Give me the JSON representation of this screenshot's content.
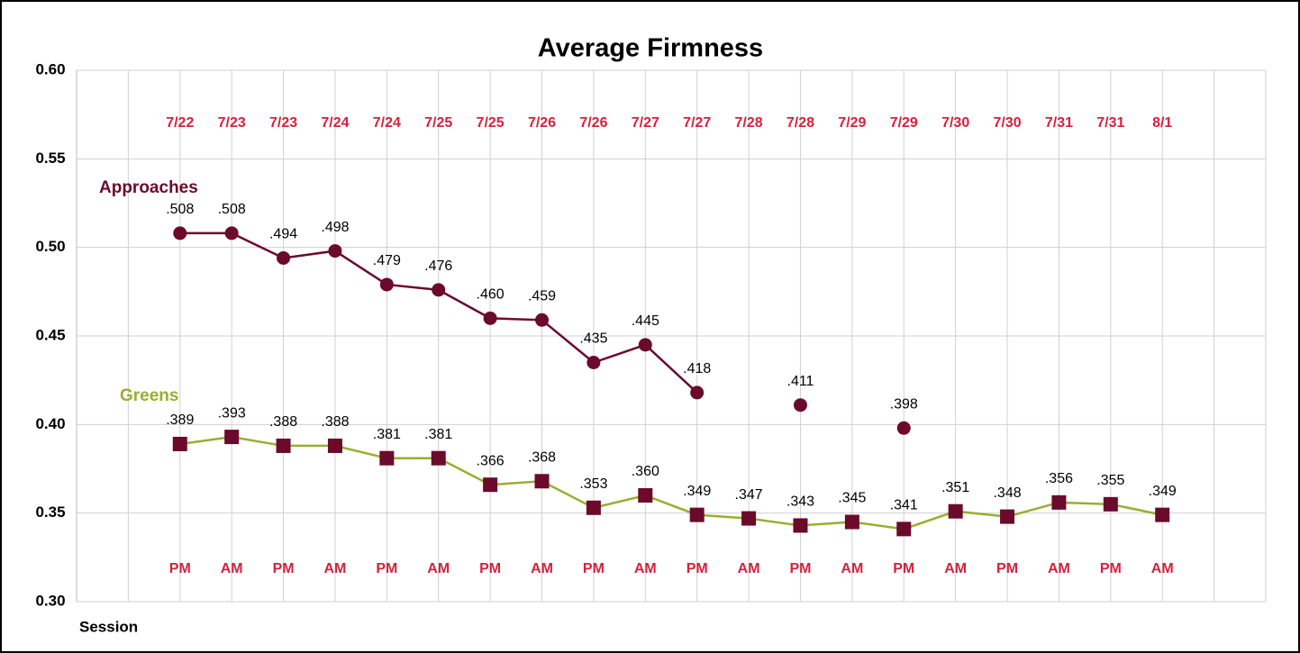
{
  "chart_data": {
    "type": "line",
    "title": "Average Firmness",
    "x_label": "Session",
    "categories": [
      null,
      null,
      "7/22",
      "7/23",
      "7/23",
      "7/24",
      "7/24",
      "7/25",
      "7/25",
      "7/26",
      "7/26",
      "7/27",
      "7/27",
      "7/28",
      "7/28",
      "7/29",
      "7/29",
      "7/30",
      "7/30",
      "7/31",
      "7/31",
      "8/1",
      null,
      null
    ],
    "sessions": [
      null,
      null,
      "PM",
      "AM",
      "PM",
      "AM",
      "PM",
      "AM",
      "PM",
      "AM",
      "PM",
      "AM",
      "PM",
      "AM",
      "PM",
      "AM",
      "PM",
      "AM",
      "PM",
      "AM",
      "PM",
      "AM",
      null,
      null
    ],
    "series": [
      {
        "name": "Approaches",
        "color": "#6b0a2a",
        "marker": "circle",
        "marker_color": "#6b0a2a",
        "values": [
          null,
          null,
          0.508,
          0.508,
          0.494,
          0.498,
          0.479,
          0.476,
          0.46,
          0.459,
          0.435,
          0.445,
          0.418,
          null,
          0.411,
          null,
          0.398,
          null,
          null,
          null,
          null,
          null,
          null,
          null
        ],
        "value_labels": [
          null,
          null,
          ".508",
          ".508",
          ".494",
          ".498",
          ".479",
          ".476",
          ".460",
          ".459",
          ".435",
          ".445",
          ".418",
          null,
          ".411",
          null,
          ".398",
          null,
          null,
          null,
          null,
          null,
          null,
          null
        ]
      },
      {
        "name": "Greens",
        "color": "#9aae2f",
        "marker": "square",
        "marker_color": "#6b0a2a",
        "values": [
          null,
          null,
          0.389,
          0.393,
          0.388,
          0.388,
          0.381,
          0.381,
          0.366,
          0.368,
          0.353,
          0.36,
          0.349,
          0.347,
          0.343,
          0.345,
          0.341,
          0.351,
          0.348,
          0.356,
          0.355,
          0.349,
          null,
          null
        ],
        "value_labels": [
          null,
          null,
          ".389",
          ".393",
          ".388",
          ".388",
          ".381",
          ".381",
          ".366",
          ".368",
          ".353",
          ".360",
          ".349",
          ".347",
          ".343",
          ".345",
          ".341",
          ".351",
          ".348",
          ".356",
          ".355",
          ".349",
          null,
          null
        ]
      }
    ],
    "ylim": [
      0.3,
      0.6
    ],
    "yticks": [
      {
        "value": 0.3,
        "label": "0.30"
      },
      {
        "value": 0.35,
        "label": "0.35"
      },
      {
        "value": 0.4,
        "label": "0.40"
      },
      {
        "value": 0.45,
        "label": "0.45"
      },
      {
        "value": 0.5,
        "label": "0.50"
      },
      {
        "value": 0.55,
        "label": "0.55"
      },
      {
        "value": 0.6,
        "label": "0.60"
      }
    ],
    "grid": true,
    "label_color": "#d6213d"
  }
}
